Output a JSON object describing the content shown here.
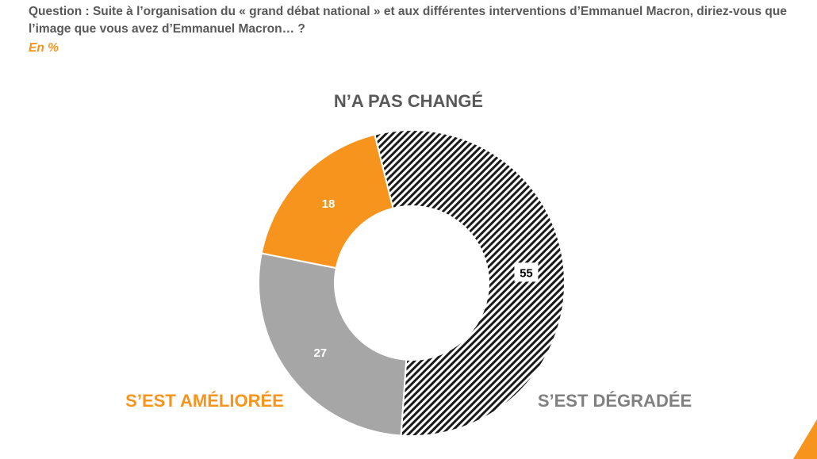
{
  "header": {
    "question": "Question : Suite à l’organisation du « grand débat national » et aux différentes interventions d’Emmanuel Macron, diriez-vous que l’image que vous avez d’Emmanuel Macron… ?",
    "unit": "En %"
  },
  "chart_data": {
    "type": "pie",
    "variant": "donut",
    "title": "",
    "slices": [
      {
        "label": "N’A PAS CHANGÉ",
        "value": 55,
        "fill": "hatch",
        "color": "#000000",
        "label_color": "#595959"
      },
      {
        "label": "S’EST DÉGRADÉE",
        "value": 27,
        "fill": "solid",
        "color": "#a6a6a6",
        "label_color": "#808080"
      },
      {
        "label": "S’EST AMÉLIORÉE",
        "value": 18,
        "fill": "solid",
        "color": "#f7941d",
        "label_color": "#f7941d"
      }
    ]
  }
}
